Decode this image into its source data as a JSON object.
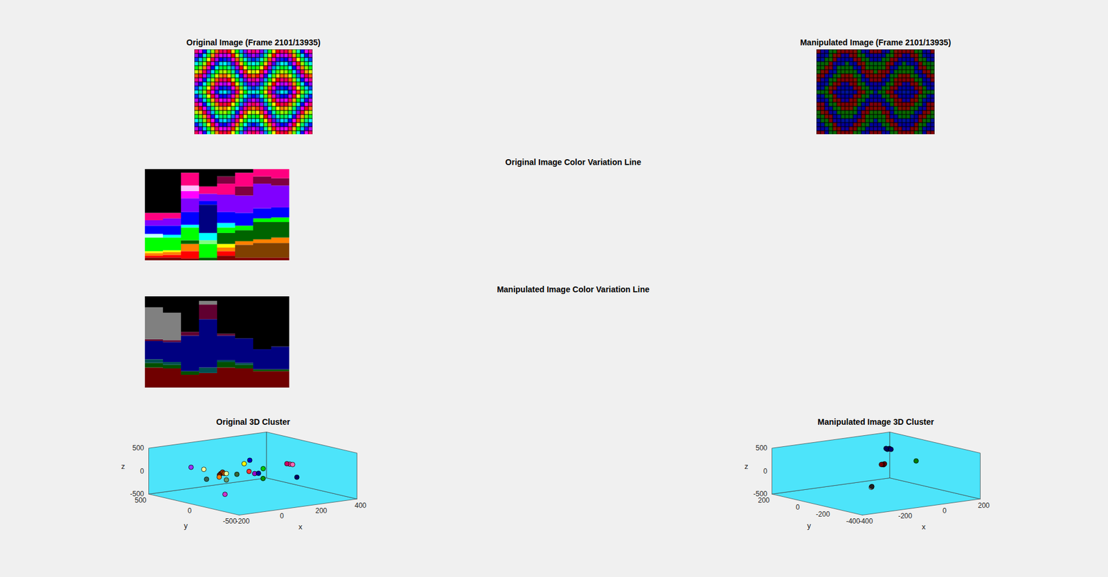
{
  "chart_data": [
    {
      "type": "image",
      "title": "Original Image (Frame 2101/13935)"
    },
    {
      "type": "image",
      "title": "Manipulated Image (Frame 2101/13935)"
    },
    {
      "type": "bar",
      "stacked": true,
      "tick_labels": false,
      "title": "Original Image Color Variation Line",
      "categories": [
        null,
        null,
        null,
        null,
        null,
        null,
        null,
        null
      ],
      "ylim": [
        0,
        100
      ],
      "stacks": [
        [
          {
            "color": "#800000",
            "value": 3
          },
          {
            "color": "#ff0000",
            "value": 2
          },
          {
            "color": "#ff8000",
            "value": 3
          },
          {
            "color": "#ffff00",
            "value": 2
          },
          {
            "color": "#00ff00",
            "value": 15
          },
          {
            "color": "#c0ffff",
            "value": 4
          },
          {
            "color": "#0000ff",
            "value": 9
          },
          {
            "color": "#8000ff",
            "value": 6
          },
          {
            "color": "#ff0080",
            "value": 8
          },
          {
            "color": "#000000",
            "value": 48
          }
        ],
        [
          {
            "color": "#800000",
            "value": 3
          },
          {
            "color": "#ff0000",
            "value": 3
          },
          {
            "color": "#ff8000",
            "value": 3
          },
          {
            "color": "#ffff00",
            "value": 2
          },
          {
            "color": "#00ff00",
            "value": 14
          },
          {
            "color": "#00ffff",
            "value": 3
          },
          {
            "color": "#0000ff",
            "value": 10
          },
          {
            "color": "#8000ff",
            "value": 8
          },
          {
            "color": "#ff0080",
            "value": 6
          },
          {
            "color": "#000000",
            "value": 48
          }
        ],
        [
          {
            "color": "#800000",
            "value": 2
          },
          {
            "color": "#ff0000",
            "value": 8
          },
          {
            "color": "#ff8000",
            "value": 8
          },
          {
            "color": "#006400",
            "value": 4
          },
          {
            "color": "#00ff00",
            "value": 14
          },
          {
            "color": "#00ffff",
            "value": 3
          },
          {
            "color": "#0000ff",
            "value": 14
          },
          {
            "color": "#8000ff",
            "value": 15
          },
          {
            "color": "#ff00ff",
            "value": 8
          },
          {
            "color": "#ffc0ff",
            "value": 6
          },
          {
            "color": "#ff0080",
            "value": 14
          },
          {
            "color": "#000000",
            "value": 4
          }
        ],
        [
          {
            "color": "#006400",
            "value": 3
          },
          {
            "color": "#00ff00",
            "value": 15
          },
          {
            "color": "#80ff80",
            "value": 4
          },
          {
            "color": "#00ffff",
            "value": 8
          },
          {
            "color": "#000080",
            "value": 31
          },
          {
            "color": "#0000ff",
            "value": 4
          },
          {
            "color": "#8000ff",
            "value": 8
          },
          {
            "color": "#ff0080",
            "value": 8
          },
          {
            "color": "#000000",
            "value": 19
          }
        ],
        [
          {
            "color": "#800000",
            "value": 5
          },
          {
            "color": "#ff0000",
            "value": 5
          },
          {
            "color": "#ff8000",
            "value": 4
          },
          {
            "color": "#ffff00",
            "value": 4
          },
          {
            "color": "#006400",
            "value": 12
          },
          {
            "color": "#00ff00",
            "value": 6
          },
          {
            "color": "#00ffff",
            "value": 5
          },
          {
            "color": "#0000ff",
            "value": 12
          },
          {
            "color": "#8000ff",
            "value": 19
          },
          {
            "color": "#ff0080",
            "value": 12
          },
          {
            "color": "#800040",
            "value": 8
          },
          {
            "color": "#000000",
            "value": 8
          }
        ],
        [
          {
            "color": "#800000",
            "value": 3
          },
          {
            "color": "#804000",
            "value": 14
          },
          {
            "color": "#ff8000",
            "value": 4
          },
          {
            "color": "#006400",
            "value": 12
          },
          {
            "color": "#00ff00",
            "value": 5
          },
          {
            "color": "#0000ff",
            "value": 14
          },
          {
            "color": "#8000ff",
            "value": 19
          },
          {
            "color": "#800040",
            "value": 10
          },
          {
            "color": "#ff0080",
            "value": 15
          },
          {
            "color": "#000000",
            "value": 4
          }
        ],
        [
          {
            "color": "#800000",
            "value": 3
          },
          {
            "color": "#804000",
            "value": 16
          },
          {
            "color": "#ff8000",
            "value": 4
          },
          {
            "color": "#006400",
            "value": 19
          },
          {
            "color": "#00ff00",
            "value": 4
          },
          {
            "color": "#0000ff",
            "value": 11
          },
          {
            "color": "#8000ff",
            "value": 27
          },
          {
            "color": "#800040",
            "value": 8
          },
          {
            "color": "#ff0080",
            "value": 8
          }
        ],
        [
          {
            "color": "#800000",
            "value": 3
          },
          {
            "color": "#804000",
            "value": 16
          },
          {
            "color": "#ff8000",
            "value": 6
          },
          {
            "color": "#006400",
            "value": 17
          },
          {
            "color": "#00ff00",
            "value": 5
          },
          {
            "color": "#0000ff",
            "value": 11
          },
          {
            "color": "#8000ff",
            "value": 24
          },
          {
            "color": "#800040",
            "value": 8
          },
          {
            "color": "#ff0080",
            "value": 10
          }
        ]
      ]
    },
    {
      "type": "bar",
      "stacked": true,
      "tick_labels": false,
      "title": "Manipulated Image Color Variation Line",
      "categories": [
        null,
        null,
        null,
        null,
        null,
        null,
        null,
        null
      ],
      "ylim": [
        0,
        100
      ],
      "stacks": [
        [
          {
            "color": "#700000",
            "value": 22
          },
          {
            "color": "#005000",
            "value": 5
          },
          {
            "color": "#005050",
            "value": 4
          },
          {
            "color": "#000080",
            "value": 20
          },
          {
            "color": "#600030",
            "value": 2
          },
          {
            "color": "#808080",
            "value": 35
          },
          {
            "color": "#000000",
            "value": 12
          }
        ],
        [
          {
            "color": "#700000",
            "value": 21
          },
          {
            "color": "#005000",
            "value": 4
          },
          {
            "color": "#005050",
            "value": 3
          },
          {
            "color": "#000080",
            "value": 22
          },
          {
            "color": "#600030",
            "value": 2
          },
          {
            "color": "#808080",
            "value": 30
          },
          {
            "color": "#000000",
            "value": 18
          }
        ],
        [
          {
            "color": "#700000",
            "value": 14
          },
          {
            "color": "#005000",
            "value": 4
          },
          {
            "color": "#000080",
            "value": 39
          },
          {
            "color": "#600030",
            "value": 4
          },
          {
            "color": "#000000",
            "value": 39
          }
        ],
        [
          {
            "color": "#700000",
            "value": 16
          },
          {
            "color": "#005050",
            "value": 6
          },
          {
            "color": "#000080",
            "value": 53
          },
          {
            "color": "#600030",
            "value": 16
          },
          {
            "color": "#808080",
            "value": 4
          },
          {
            "color": "#000000",
            "value": 5
          }
        ],
        [
          {
            "color": "#700000",
            "value": 22
          },
          {
            "color": "#005000",
            "value": 6
          },
          {
            "color": "#005050",
            "value": 2
          },
          {
            "color": "#000080",
            "value": 27
          },
          {
            "color": "#600030",
            "value": 2
          },
          {
            "color": "#000000",
            "value": 41
          }
        ],
        [
          {
            "color": "#700000",
            "value": 21
          },
          {
            "color": "#005000",
            "value": 4
          },
          {
            "color": "#005050",
            "value": 2
          },
          {
            "color": "#000080",
            "value": 27
          },
          {
            "color": "#000000",
            "value": 46
          }
        ],
        [
          {
            "color": "#700000",
            "value": 18
          },
          {
            "color": "#005000",
            "value": 2
          },
          {
            "color": "#000080",
            "value": 22
          },
          {
            "color": "#000000",
            "value": 58
          }
        ],
        [
          {
            "color": "#700000",
            "value": 18
          },
          {
            "color": "#005000",
            "value": 2
          },
          {
            "color": "#000080",
            "value": 25
          },
          {
            "color": "#000000",
            "value": 55
          }
        ]
      ]
    },
    {
      "type": "scatter3d",
      "title": "Original 3D Cluster",
      "xlabel": "x",
      "ylabel": "y",
      "zlabel": "z",
      "xlim": [
        -200,
        400
      ],
      "ylim": [
        -500,
        500
      ],
      "zlim": [
        -500,
        500
      ],
      "xticks": [
        -200,
        0,
        200,
        400
      ],
      "yticks": [
        -500,
        0,
        500
      ],
      "zticks": [
        -500,
        0,
        500
      ],
      "x": [
        -11,
        1,
        -126,
        -180,
        -3,
        10,
        -15,
        5,
        -56,
        15,
        -72,
        39,
        208,
        274,
        117,
        106,
        115,
        201,
        65,
        380,
        370,
        390,
        191
      ],
      "y": [
        442,
        327,
        21,
        -300,
        131,
        140,
        120,
        110,
        33,
        108,
        -81,
        44,
        331,
        412,
        79,
        -7,
        -30,
        105,
        -189,
        200,
        210,
        190,
        -289
      ],
      "z": [
        0,
        0,
        0,
        -150,
        0,
        20,
        -20,
        10,
        0,
        0,
        0,
        0,
        0,
        0,
        0,
        0,
        10,
        0,
        0,
        -50,
        -40,
        -60,
        0
      ],
      "colors": [
        "#9933ff",
        "#ffff99",
        "#336655",
        "#cc33cc",
        "#802020",
        "#993300",
        "#661a00",
        "#b34700",
        "#ff8000",
        "#e6ff99",
        "#669966",
        "#336633",
        "#ffff00",
        "#0000cc",
        "#ff3333",
        "#9900cc",
        "#000099",
        "#00cc00",
        "#009900",
        "#ff3399",
        "#cc0066",
        "#ff66b3",
        "#000066"
      ]
    },
    {
      "type": "scatter3d",
      "title": "Manipulated Image 3D Cluster",
      "xlabel": "x",
      "ylabel": "y",
      "zlabel": "z",
      "xlim": [
        -400,
        200
      ],
      "ylim": [
        -400,
        200
      ],
      "zlim": [
        -500,
        500
      ],
      "xticks": [
        -400,
        -200,
        0,
        200
      ],
      "yticks": [
        -400,
        -200,
        0,
        200
      ],
      "zticks": [
        -500,
        0,
        500
      ],
      "x": [
        89,
        80,
        98,
        85,
        95,
        51,
        45,
        58,
        50,
        42,
        139,
        -299,
        -305,
        -292
      ],
      "y": [
        64,
        60,
        70,
        75,
        55,
        46,
        40,
        50,
        55,
        50,
        -54,
        -329,
        -335,
        -322
      ],
      "z": [
        300,
        300,
        300,
        305,
        295,
        0,
        0,
        5,
        -5,
        0,
        100,
        0,
        0,
        0
      ],
      "colors": [
        "#000066",
        "#000080",
        "#000050",
        "#00005a",
        "#000070",
        "#700000",
        "#800000",
        "#600000",
        "#5a0000",
        "#780000",
        "#008000",
        "#ffffff",
        "#e0e0e0",
        "#202020"
      ]
    }
  ]
}
